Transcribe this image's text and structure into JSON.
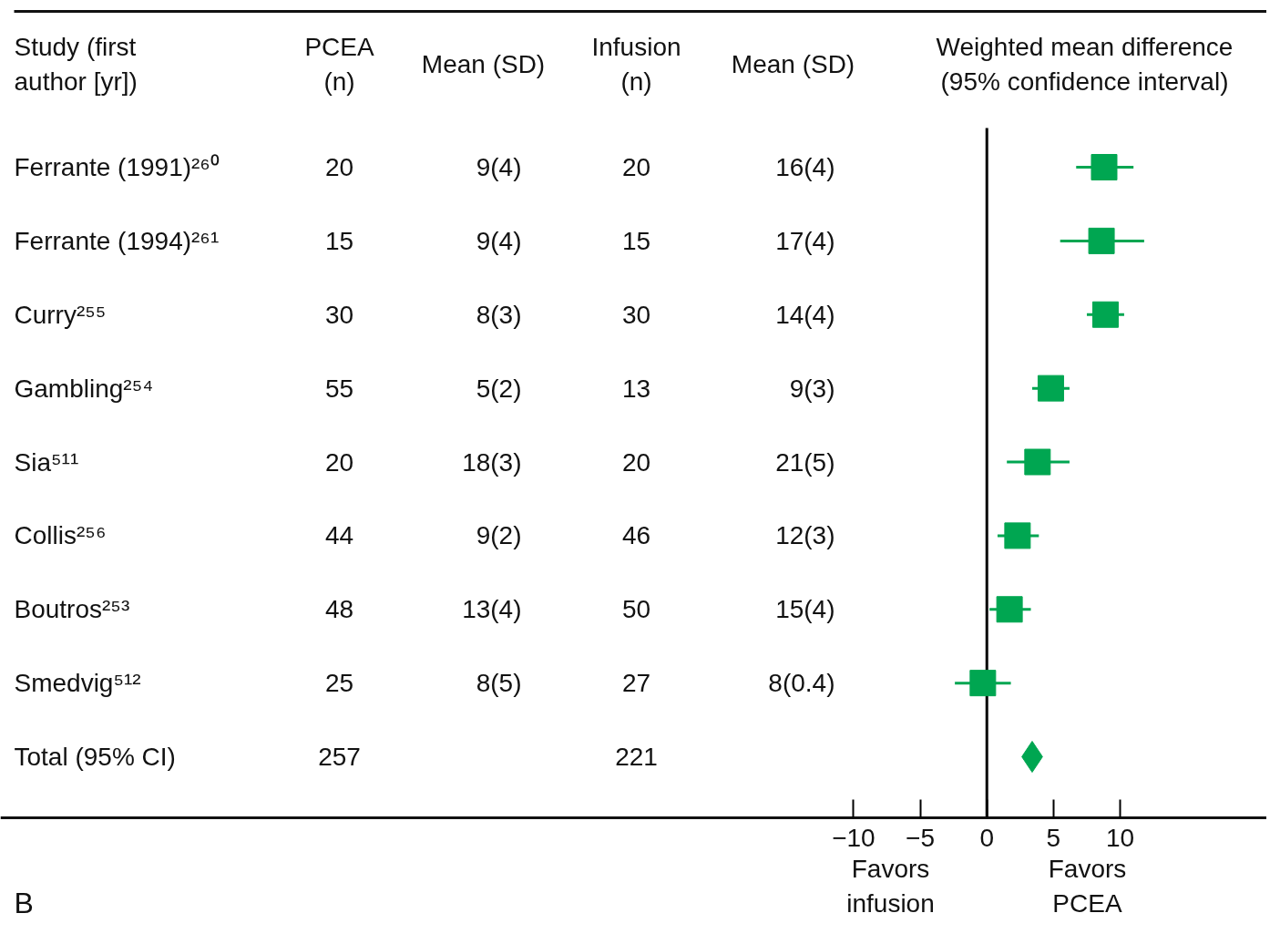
{
  "chart_data": {
    "type": "scatter",
    "orientation": "horizontal",
    "categories": [
      "Ferrante (1991)²⁶⁰",
      "Ferrante (1994)²⁶¹",
      "Curry²⁵⁵",
      "Gambling²⁵⁴",
      "Sia⁵¹¹",
      "Collis²⁵⁶",
      "Boutros²⁵³",
      "Smedvig⁵¹²",
      "Total (95% CI)"
    ],
    "series": [
      {
        "color": "#00a651",
        "marker": "square",
        "values": [
          8.8,
          8.6,
          8.9,
          4.8,
          3.8,
          2.3,
          1.7,
          -0.3,
          null
        ],
        "errors": [
          [
            6.7,
            11.0
          ],
          [
            5.5,
            11.8
          ],
          [
            7.5,
            10.3
          ],
          [
            3.4,
            6.2
          ],
          [
            1.5,
            6.2
          ],
          [
            0.8,
            3.9
          ],
          [
            0.2,
            3.3
          ],
          [
            -2.4,
            1.8
          ],
          null
        ]
      },
      {
        "color": "#00a651",
        "marker": "diamond",
        "values": [
          null,
          null,
          null,
          null,
          null,
          null,
          null,
          null,
          3.4
        ]
      }
    ],
    "xlim": [
      -74,
      21
    ],
    "xticks": [
      {
        "value": -10,
        "label": "−10"
      },
      {
        "value": -5,
        "label": "−5"
      },
      0,
      5,
      10
    ],
    "ref_lines": [
      {
        "axis": "x",
        "value": 0,
        "color": "#000000"
      }
    ],
    "grid": false,
    "annotations": [
      "Study (first\nauthor [yr])",
      "PCEA\n(n)",
      "Mean (SD)",
      "Infusion\n(n)",
      "Mean (SD)",
      "Weighted mean difference\n(95% confidence interval)",
      "20",
      "9(4)",
      "20",
      "16(4)",
      "15",
      "9(4)",
      "15",
      "17(4)",
      "30",
      "8(3)",
      "30",
      "14(4)",
      "55",
      "5(2)",
      "13",
      "9(3)",
      "20",
      "18(3)",
      "20",
      "21(5)",
      "44",
      "9(2)",
      "46",
      "12(3)",
      "48",
      "13(4)",
      "50",
      "15(4)",
      "25",
      "8(5)",
      "27",
      "8(0.4)",
      "257",
      "221",
      "Favors\ninfusion",
      "Favors\nPCEA",
      "B"
    ]
  }
}
